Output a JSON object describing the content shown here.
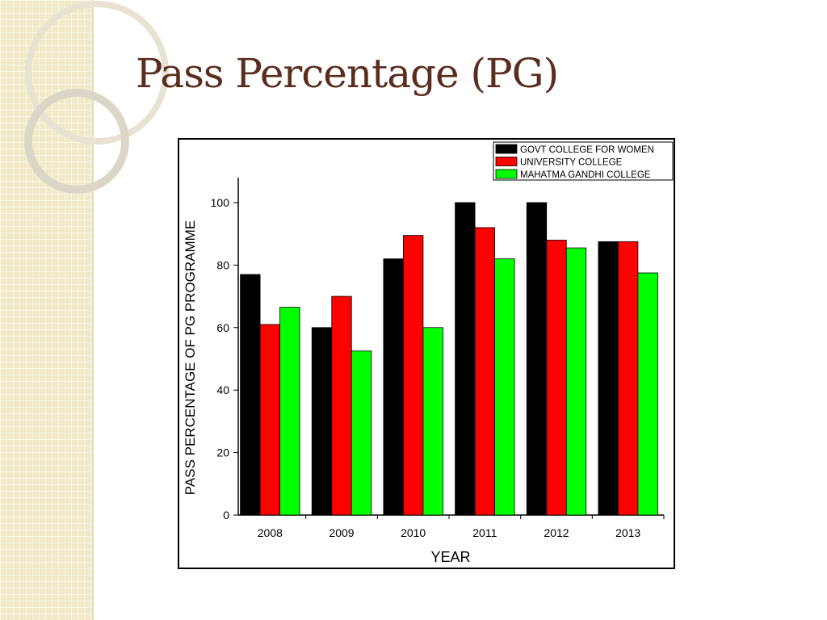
{
  "title": "Pass Percentage (PG)",
  "chart_data": {
    "type": "bar",
    "x_label": "YEAR",
    "y_label": "PASS PERCENTAGE OF PG PROGRAMME",
    "categories": [
      "2008",
      "2009",
      "2010",
      "2011",
      "2012",
      "2013"
    ],
    "series": [
      {
        "name": "GOVT COLLEGE FOR WOMEN",
        "color": "#000000",
        "values": [
          77,
          60,
          82,
          100,
          100,
          87.5
        ]
      },
      {
        "name": "UNIVERSITY COLLEGE",
        "color": "#ff0000",
        "values": [
          61,
          70,
          89.5,
          92,
          88,
          87.5
        ]
      },
      {
        "name": "MAHATMA GANDHI COLLEGE",
        "color": "#00ff00",
        "values": [
          66.5,
          52.5,
          60,
          82,
          85.5,
          77.5
        ]
      }
    ],
    "ylim": [
      0,
      108
    ],
    "yticks": [
      0,
      20,
      40,
      60,
      80,
      100
    ],
    "legend": "top-right",
    "grid": false
  }
}
